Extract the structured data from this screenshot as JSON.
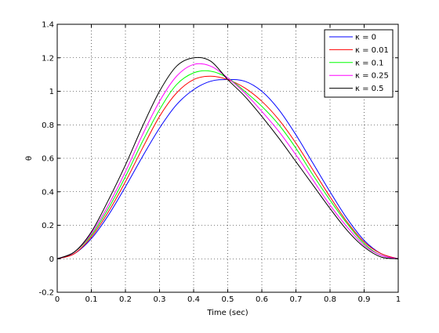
{
  "chart_data": {
    "type": "line",
    "title": "",
    "xlabel": "Time (sec)",
    "ylabel": "θ",
    "xlim": [
      0,
      1
    ],
    "ylim": [
      -0.2,
      1.4
    ],
    "xticks": [
      "0",
      "0.1",
      "0.2",
      "0.3",
      "0.4",
      "0.5",
      "0.6",
      "0.7",
      "0.8",
      "0.9",
      "1"
    ],
    "yticks": [
      "-0.2",
      "0",
      "0.2",
      "0.4",
      "0.6",
      "0.8",
      "1",
      "1.2",
      "1.4"
    ],
    "grid": true,
    "legend_position": "top-right",
    "x": [
      0,
      0.05,
      0.1,
      0.15,
      0.2,
      0.25,
      0.3,
      0.35,
      0.4,
      0.45,
      0.5,
      0.55,
      0.6,
      0.65,
      0.7,
      0.75,
      0.8,
      0.85,
      0.9,
      0.95,
      1.0
    ],
    "series": [
      {
        "name": "κ = 0",
        "color": "#0000ff",
        "values": [
          0,
          0.03,
          0.12,
          0.26,
          0.43,
          0.61,
          0.78,
          0.92,
          1.01,
          1.06,
          1.07,
          1.06,
          1.0,
          0.89,
          0.74,
          0.57,
          0.4,
          0.24,
          0.11,
          0.03,
          0
        ]
      },
      {
        "name": "κ = 0.01",
        "color": "#ff0000",
        "values": [
          0,
          0.03,
          0.13,
          0.28,
          0.46,
          0.66,
          0.85,
          0.99,
          1.07,
          1.09,
          1.07,
          1.02,
          0.94,
          0.83,
          0.69,
          0.53,
          0.37,
          0.22,
          0.1,
          0.03,
          0
        ]
      },
      {
        "name": "κ = 0.1",
        "color": "#00ff00",
        "values": [
          0,
          0.04,
          0.14,
          0.3,
          0.49,
          0.7,
          0.89,
          1.04,
          1.11,
          1.12,
          1.08,
          1.0,
          0.91,
          0.8,
          0.66,
          0.5,
          0.35,
          0.21,
          0.09,
          0.02,
          0
        ]
      },
      {
        "name": "κ = 0.25",
        "color": "#ff00ff",
        "values": [
          0,
          0.04,
          0.15,
          0.32,
          0.52,
          0.74,
          0.94,
          1.09,
          1.16,
          1.15,
          1.08,
          0.99,
          0.88,
          0.76,
          0.62,
          0.47,
          0.32,
          0.19,
          0.08,
          0.02,
          0
        ]
      },
      {
        "name": "κ = 0.5",
        "color": "#000000",
        "values": [
          0,
          0.04,
          0.16,
          0.35,
          0.56,
          0.79,
          1.0,
          1.15,
          1.2,
          1.18,
          1.07,
          0.97,
          0.85,
          0.72,
          0.58,
          0.44,
          0.3,
          0.17,
          0.07,
          0.01,
          0
        ]
      }
    ]
  }
}
